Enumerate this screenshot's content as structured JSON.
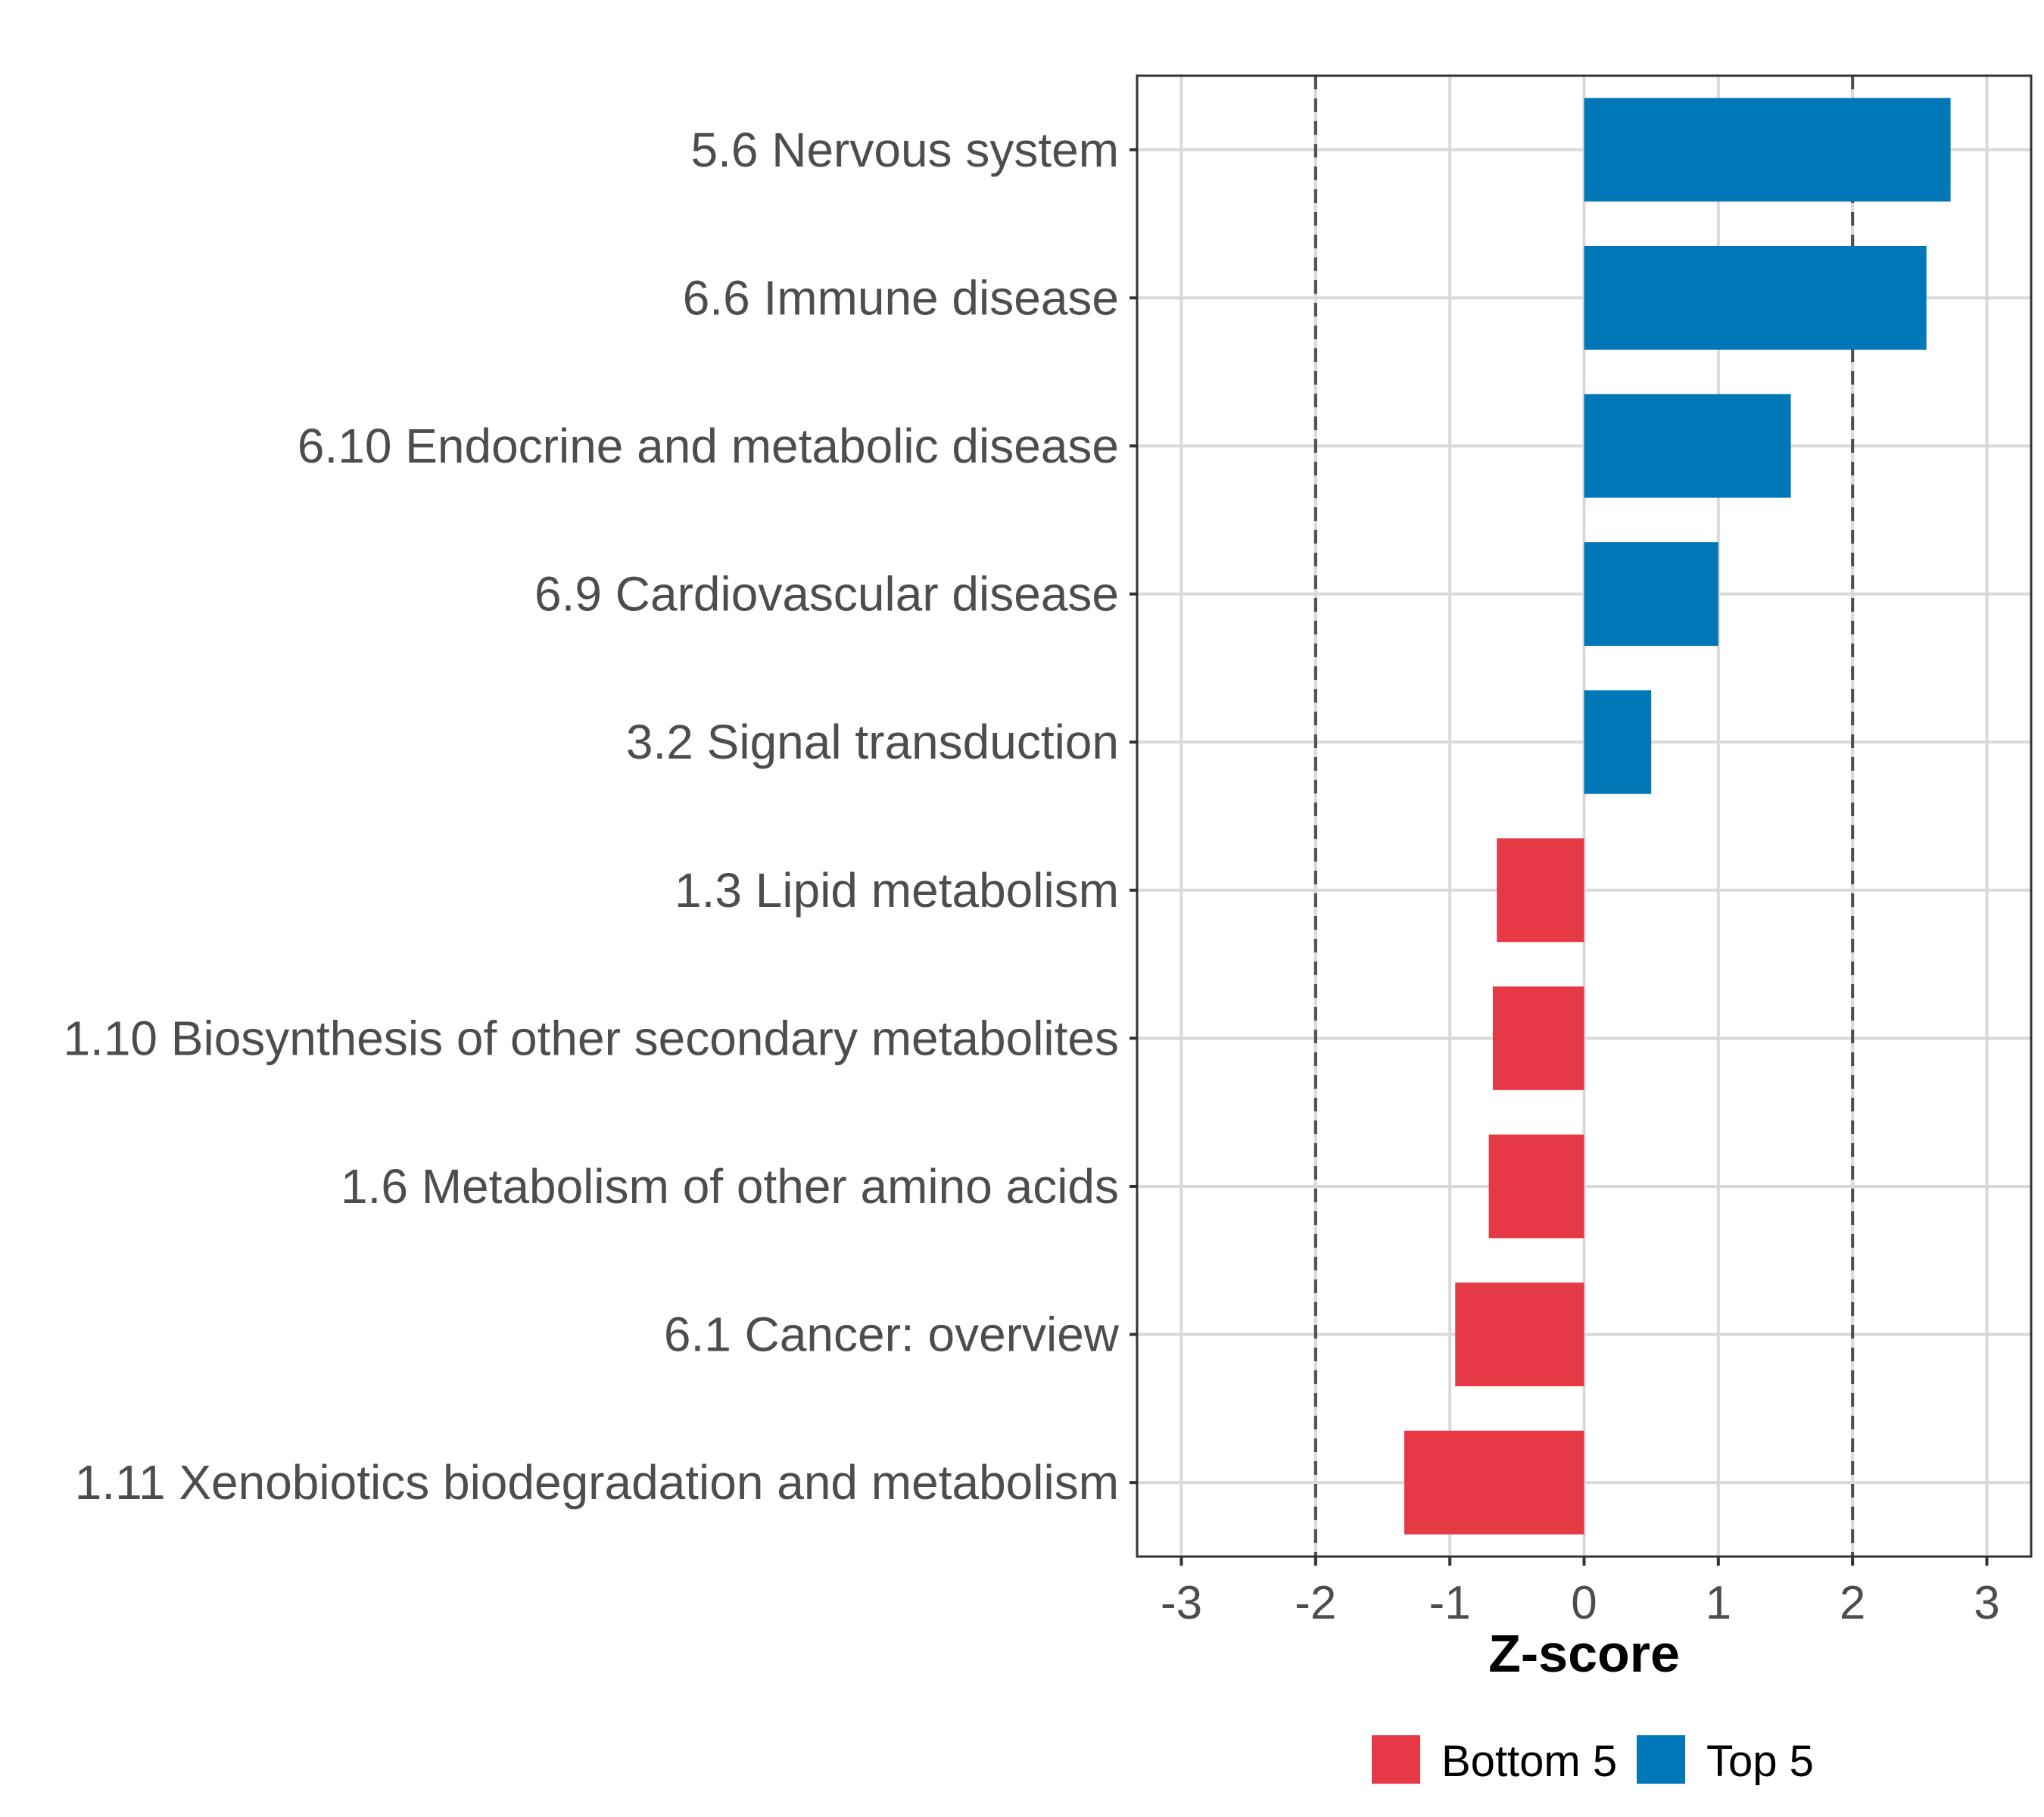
{
  "chart_data": {
    "type": "bar",
    "orientation": "horizontal",
    "categories": [
      "5.6 Nervous system",
      "6.6 Immune disease",
      "6.10 Endocrine and metabolic disease",
      "6.9 Cardiovascular disease",
      "3.2 Signal transduction",
      "1.3 Lipid metabolism",
      "1.10 Biosynthesis of other secondary metabolites",
      "1.6 Metabolism of other amino acids",
      "6.1 Cancer: overview",
      "1.11 Xenobiotics biodegradation and metabolism"
    ],
    "values": [
      2.73,
      2.55,
      1.54,
      1.0,
      0.5,
      -0.65,
      -0.68,
      -0.71,
      -0.96,
      -1.34
    ],
    "groups": [
      "Top 5",
      "Top 5",
      "Top 5",
      "Top 5",
      "Top 5",
      "Bottom 5",
      "Bottom 5",
      "Bottom 5",
      "Bottom 5",
      "Bottom 5"
    ],
    "xlabel": "Z-score",
    "ylabel": "",
    "xlim": [
      -3.33,
      3.33
    ],
    "xticks": [
      -3,
      -2,
      -1,
      0,
      1,
      2,
      3
    ],
    "xtick_labels": [
      "-3",
      "-2",
      "-1",
      "0",
      "1",
      "2",
      "3"
    ],
    "reference_lines": [
      -2,
      2
    ],
    "grid": true,
    "legend": {
      "position": "bottom",
      "entries": [
        {
          "label": "Bottom 5",
          "color": "#e63946"
        },
        {
          "label": "Top 5",
          "color": "#0077b6"
        }
      ]
    }
  }
}
